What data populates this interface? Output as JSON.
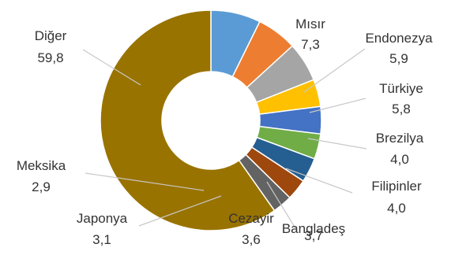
{
  "chart_data": {
    "type": "pie",
    "donut": true,
    "title": "",
    "legend": "none",
    "categories": [
      "Mısır",
      "Endonezya",
      "Türkiye",
      "Brezilya",
      "Filipinler",
      "Bangladeş",
      "Cezayir",
      "Japonya",
      "Meksika",
      "Diğer"
    ],
    "values": [
      7.3,
      5.9,
      5.8,
      4.0,
      4.0,
      3.7,
      3.6,
      3.1,
      2.9,
      59.8
    ],
    "value_labels": [
      "7,3",
      "5,9",
      "5,8",
      "4,0",
      "4,0",
      "3,7",
      "3,6",
      "3,1",
      "2,9",
      "59,8"
    ],
    "colors": [
      "#5B9BD5",
      "#ED7D31",
      "#A5A5A5",
      "#FFC000",
      "#4472C4",
      "#70AD47",
      "#255E91",
      "#9E480E",
      "#636363",
      "#997300"
    ]
  }
}
